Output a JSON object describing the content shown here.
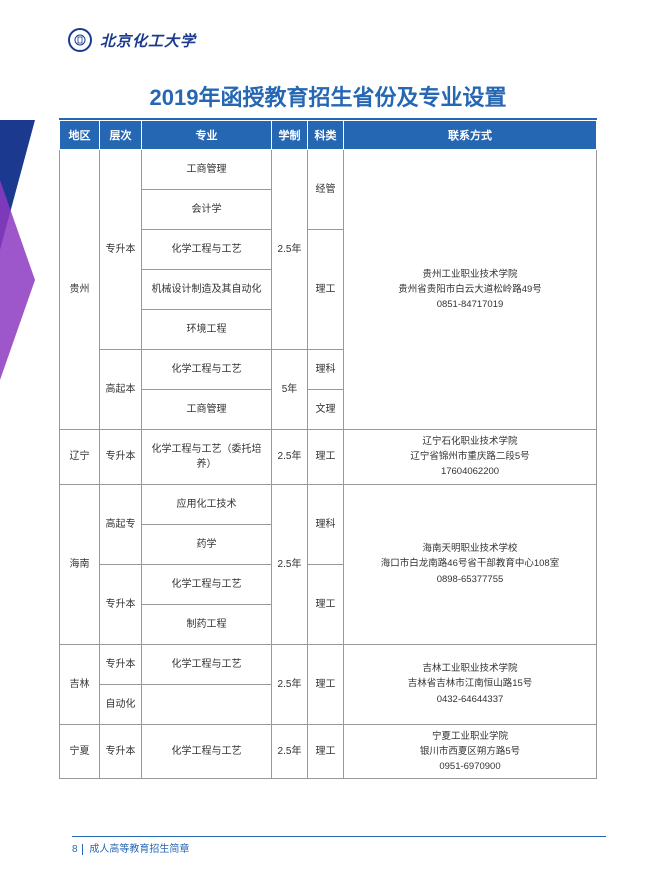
{
  "header": {
    "university": "北京化工大学"
  },
  "title": "2019年函授教育招生省份及专业设置",
  "columns": [
    "地区",
    "层次",
    "专业",
    "学制",
    "科类",
    "联系方式"
  ],
  "colWidths": [
    "40px",
    "42px",
    "130px",
    "36px",
    "36px",
    "auto"
  ],
  "rows": [
    {
      "region": "贵州",
      "level": "专升本",
      "major": "工商管理",
      "duration": "2.5年",
      "category": "经管",
      "contact": "贵州工业职业技术学院\n贵州省贵阳市白云大道松岭路49号\n0851-84717019",
      "regionRowspan": 7,
      "levelRowspan": 5,
      "durationRowspan": 5,
      "categoryRowspan": 2,
      "contactRowspan": 7
    },
    {
      "major": "会计学"
    },
    {
      "major": "化学工程与工艺",
      "category": "理工",
      "categoryRowspan": 3
    },
    {
      "major": "机械设计制造及其自动化"
    },
    {
      "major": "环境工程"
    },
    {
      "level": "高起本",
      "major": "化学工程与工艺",
      "duration": "5年",
      "category": "理科",
      "levelRowspan": 2,
      "durationRowspan": 2
    },
    {
      "major": "工商管理",
      "category": "文理"
    },
    {
      "region": "辽宁",
      "level": "专升本",
      "major": "化学工程与工艺（委托培养）",
      "duration": "2.5年",
      "category": "理工",
      "contact": "辽宁石化职业技术学院\n辽宁省锦州市重庆路二段5号\n17604062200"
    },
    {
      "region": "海南",
      "level": "高起专",
      "major": "应用化工技术",
      "duration": "2.5年",
      "category": "理科",
      "contact": "海南天明职业技术学校\n海口市白龙南路46号省干部教育中心108室\n0898-65377755",
      "regionRowspan": 4,
      "levelRowspan": 2,
      "durationRowspan": 4,
      "categoryRowspan": 2,
      "contactRowspan": 4
    },
    {
      "major": "药学"
    },
    {
      "level": "专升本",
      "major": "化学工程与工艺",
      "category": "理工",
      "levelRowspan": 2,
      "categoryRowspan": 2
    },
    {
      "major": "制药工程"
    },
    {
      "region": "吉林",
      "level": "专升本",
      "major": "化学工程与工艺",
      "duration": "2.5年",
      "category": "理工",
      "contact": "吉林工业职业技术学院\n吉林省吉林市江南恒山路15号\n0432-64644337",
      "regionRowspan": 2,
      "durationRowspan": 2,
      "categoryRowspan": 2,
      "contactRowspan": 2
    },
    {
      "major": "自动化"
    },
    {
      "region": "宁夏",
      "level": "专升本",
      "major": "化学工程与工艺",
      "duration": "2.5年",
      "category": "理工",
      "contact": "宁夏工业职业学院\n银川市西夏区朔方路5号\n0951-6970900"
    }
  ],
  "footer": {
    "pageNumber": "8",
    "text": "成人高等教育招生简章"
  },
  "colors": {
    "headerBlue": "#2667b4",
    "decoBlue": "#1b3a8f",
    "decoPurple": "#8d3ac2"
  }
}
